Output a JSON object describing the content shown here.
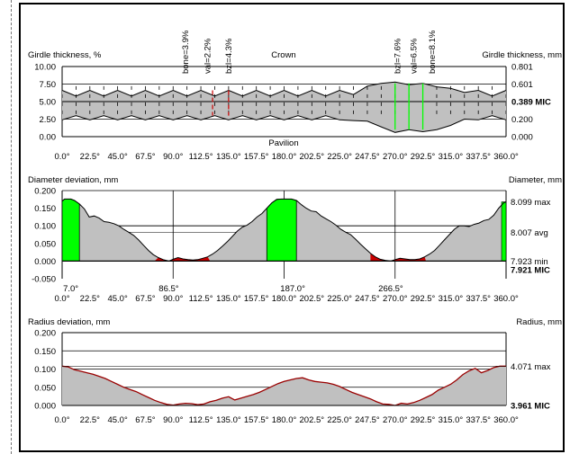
{
  "colors": {
    "gray": "#c0c0c0",
    "green": "#00ff00",
    "red": "#cc0000",
    "dark_red": "#990000",
    "label_green": "#22cc22",
    "label_red": "#ff2222"
  },
  "angles": [
    "0.0°",
    "22.5°",
    "45.0°",
    "67.5°",
    "90.0°",
    "112.5°",
    "135.0°",
    "157.5°",
    "180.0°",
    "202.5°",
    "225.0°",
    "247.5°",
    "270.0°",
    "292.5°",
    "315.0°",
    "337.5°",
    "360.0°"
  ],
  "chart_data": [
    {
      "type": "area",
      "title": "Crown",
      "subtitle": "Pavilion",
      "ylabel": "Girdle thickness, %",
      "ylabel_right": "Girdle thickness, mm",
      "ylim": [
        0,
        10
      ],
      "yticks": [
        "10.00",
        "7.50",
        "5.00",
        "2.50",
        "0.00"
      ],
      "yticks_right": [
        "0.801",
        "0.601",
        "0.389 MIC",
        "0.200",
        "0.000"
      ],
      "x": [
        0,
        11.25,
        22.5,
        33.75,
        45,
        56.25,
        67.5,
        78.75,
        90,
        101.25,
        112.5,
        123.75,
        135,
        146.25,
        157.5,
        168.75,
        180,
        191.25,
        202.5,
        213.75,
        225,
        236.25,
        247.5,
        258.75,
        270,
        281.25,
        292.5,
        303.75,
        315,
        326.25,
        337.5,
        348.75,
        360
      ],
      "upper": [
        6.6,
        5.8,
        6.6,
        5.8,
        6.6,
        5.8,
        6.6,
        5.8,
        6.6,
        5.8,
        6.6,
        5.8,
        6.6,
        5.8,
        6.6,
        5.8,
        6.6,
        5.8,
        6.6,
        5.8,
        6.6,
        6.0,
        7.2,
        7.6,
        7.8,
        7.4,
        7.6,
        7.1,
        6.9,
        6.3,
        6.6,
        5.8,
        6.6
      ],
      "lower": [
        2.4,
        3.0,
        2.4,
        3.0,
        2.4,
        3.0,
        2.4,
        3.0,
        2.4,
        3.0,
        2.4,
        3.0,
        2.4,
        3.0,
        2.4,
        3.0,
        2.4,
        3.0,
        2.4,
        3.0,
        2.4,
        2.3,
        2.2,
        1.4,
        0.6,
        1.0,
        0.7,
        1.0,
        1.6,
        2.5,
        2.4,
        3.0,
        2.4
      ],
      "annotations": [
        {
          "text": "bone=3.9%",
          "angle": 100
        },
        {
          "text": "val=2.2%",
          "angle": 118
        },
        {
          "text": "bzl=4.3%",
          "angle": 135
        },
        {
          "text": "bzl=7.6%",
          "angle": 272
        },
        {
          "text": "val=6.5%",
          "angle": 285
        },
        {
          "text": "bone=8.1%",
          "angle": 300
        }
      ]
    },
    {
      "type": "area",
      "ylabel": "Diameter deviation, mm",
      "ylabel_right": "Diameter, mm",
      "ylim": [
        -0.05,
        0.2
      ],
      "yticks": [
        "0.200",
        "0.150",
        "0.100",
        "0.050",
        "0.000",
        "-0.050"
      ],
      "right_labels": [
        "8.099 max",
        "8.007 avg",
        "7.923 min",
        "7.921 MIC"
      ],
      "x": [
        0,
        2,
        4,
        7,
        10,
        14,
        18,
        22,
        26,
        30,
        34,
        38,
        42,
        46,
        50,
        54,
        58,
        62,
        66,
        70,
        74,
        78,
        82,
        86.5,
        90,
        94,
        98,
        102,
        106,
        110,
        114,
        118,
        122,
        126,
        130,
        134,
        138,
        142,
        146,
        150,
        154,
        158,
        162,
        166,
        170,
        174,
        178,
        182,
        186,
        190,
        194,
        198,
        202,
        206,
        210,
        214,
        218,
        222,
        226,
        230,
        234,
        238,
        242,
        246,
        250,
        254,
        258,
        262,
        266.5,
        270,
        274,
        278,
        282,
        286,
        290,
        294,
        298,
        302,
        306,
        310,
        314,
        318,
        322,
        326,
        330,
        334,
        338,
        342,
        346,
        350,
        354,
        358,
        360
      ],
      "values": [
        0.17,
        0.176,
        0.176,
        0.176,
        0.172,
        0.162,
        0.148,
        0.125,
        0.128,
        0.122,
        0.112,
        0.11,
        0.106,
        0.1,
        0.09,
        0.082,
        0.073,
        0.06,
        0.045,
        0.03,
        0.018,
        0.01,
        0.004,
        0.0,
        0.005,
        0.01,
        0.006,
        0.004,
        0.003,
        0.004,
        0.008,
        0.012,
        0.02,
        0.03,
        0.042,
        0.055,
        0.07,
        0.085,
        0.096,
        0.102,
        0.112,
        0.125,
        0.135,
        0.15,
        0.165,
        0.175,
        0.176,
        0.176,
        0.176,
        0.172,
        0.16,
        0.15,
        0.142,
        0.14,
        0.128,
        0.12,
        0.112,
        0.102,
        0.09,
        0.082,
        0.075,
        0.062,
        0.048,
        0.035,
        0.022,
        0.012,
        0.005,
        0.002,
        0.0,
        0.004,
        0.008,
        0.006,
        0.004,
        0.004,
        0.006,
        0.012,
        0.02,
        0.03,
        0.045,
        0.06,
        0.075,
        0.09,
        0.1,
        0.1,
        0.098,
        0.104,
        0.108,
        0.115,
        0.118,
        0.13,
        0.15,
        0.165,
        0.168
      ],
      "green_ranges": [
        [
          0,
          14
        ],
        [
          166,
          190
        ]
      ],
      "green_bars": [
        360
      ],
      "red_dots": [
        75,
        80,
        88,
        96,
        110,
        120,
        250,
        262,
        275,
        285,
        295
      ],
      "markers": [
        {
          "text": "7.0°",
          "angle": 7,
          "color": "green"
        },
        {
          "text": "86.5°",
          "angle": 86.5,
          "color": "red"
        },
        {
          "text": "187.0°",
          "angle": 187,
          "color": "green"
        },
        {
          "text": "266.5°",
          "angle": 266.5,
          "color": "red"
        }
      ]
    },
    {
      "type": "area",
      "ylabel": "Radius deviation, mm",
      "ylabel_right": "Radius, mm",
      "ylim": [
        0,
        0.2
      ],
      "yticks": [
        "0.200",
        "0.150",
        "0.100",
        "0.050",
        "0.000"
      ],
      "right_labels": [
        "4.071 max",
        "3.961 MIC"
      ],
      "x": [
        0,
        5,
        10,
        15,
        20,
        25,
        30,
        35,
        40,
        45,
        50,
        55,
        60,
        65,
        70,
        75,
        80,
        85,
        90,
        95,
        100,
        105,
        110,
        115,
        120,
        125,
        130,
        135,
        140,
        145,
        150,
        155,
        160,
        165,
        170,
        175,
        180,
        185,
        190,
        195,
        200,
        205,
        210,
        215,
        220,
        225,
        230,
        235,
        240,
        245,
        250,
        255,
        260,
        265,
        270,
        275,
        280,
        285,
        290,
        295,
        300,
        305,
        310,
        315,
        320,
        325,
        330,
        335,
        340,
        345,
        350,
        355,
        360
      ],
      "values": [
        0.108,
        0.106,
        0.098,
        0.094,
        0.09,
        0.086,
        0.08,
        0.074,
        0.066,
        0.058,
        0.05,
        0.044,
        0.038,
        0.03,
        0.022,
        0.014,
        0.008,
        0.003,
        0.001,
        0.004,
        0.006,
        0.005,
        0.002,
        0.004,
        0.01,
        0.014,
        0.02,
        0.024,
        0.015,
        0.02,
        0.025,
        0.03,
        0.036,
        0.044,
        0.052,
        0.06,
        0.066,
        0.07,
        0.074,
        0.076,
        0.07,
        0.066,
        0.064,
        0.062,
        0.058,
        0.052,
        0.044,
        0.036,
        0.03,
        0.024,
        0.018,
        0.01,
        0.004,
        0.003,
        0.0,
        0.006,
        0.004,
        0.008,
        0.014,
        0.022,
        0.03,
        0.042,
        0.05,
        0.058,
        0.07,
        0.085,
        0.095,
        0.102,
        0.09,
        0.096,
        0.104,
        0.108,
        0.108
      ]
    }
  ]
}
